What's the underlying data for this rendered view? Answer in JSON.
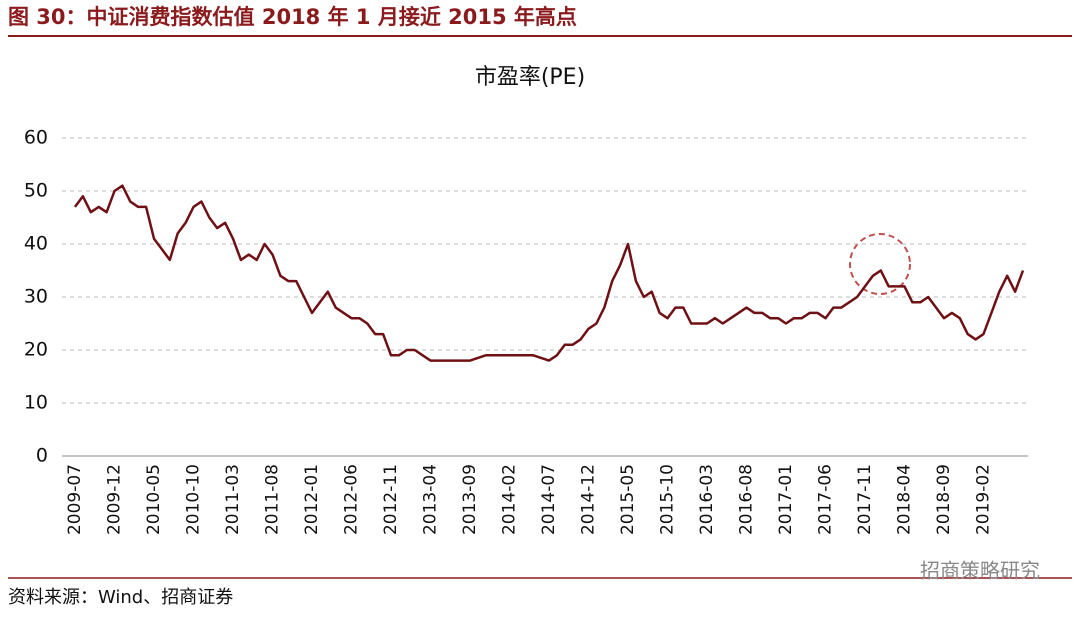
{
  "header": {
    "title": "图 30：中证消费指数估值 2018 年 1 月接近 2015 年高点"
  },
  "chart_data": {
    "type": "line",
    "title": "市盈率(PE)",
    "x": [
      "2009-07",
      "2009-08",
      "2009-09",
      "2009-10",
      "2009-11",
      "2009-12",
      "2010-01",
      "2010-02",
      "2010-03",
      "2010-04",
      "2010-05",
      "2010-06",
      "2010-07",
      "2010-08",
      "2010-09",
      "2010-10",
      "2010-11",
      "2010-12",
      "2011-01",
      "2011-02",
      "2011-03",
      "2011-04",
      "2011-05",
      "2011-06",
      "2011-07",
      "2011-08",
      "2011-09",
      "2011-10",
      "2011-11",
      "2011-12",
      "2012-01",
      "2012-02",
      "2012-03",
      "2012-04",
      "2012-05",
      "2012-06",
      "2012-07",
      "2012-08",
      "2012-09",
      "2012-10",
      "2012-11",
      "2012-12",
      "2013-01",
      "2013-02",
      "2013-03",
      "2013-04",
      "2013-05",
      "2013-06",
      "2013-07",
      "2013-08",
      "2013-09",
      "2013-10",
      "2013-11",
      "2013-12",
      "2014-01",
      "2014-02",
      "2014-03",
      "2014-04",
      "2014-05",
      "2014-06",
      "2014-07",
      "2014-08",
      "2014-09",
      "2014-10",
      "2014-11",
      "2014-12",
      "2015-01",
      "2015-02",
      "2015-03",
      "2015-04",
      "2015-05",
      "2015-06",
      "2015-07",
      "2015-08",
      "2015-09",
      "2015-10",
      "2015-11",
      "2015-12",
      "2016-01",
      "2016-02",
      "2016-03",
      "2016-04",
      "2016-05",
      "2016-06",
      "2016-07",
      "2016-08",
      "2016-09",
      "2016-10",
      "2016-11",
      "2016-12",
      "2017-01",
      "2017-02",
      "2017-03",
      "2017-04",
      "2017-05",
      "2017-06",
      "2017-07",
      "2017-08",
      "2017-09",
      "2017-10",
      "2017-11",
      "2017-12",
      "2018-01",
      "2018-02",
      "2018-03",
      "2018-04",
      "2018-05",
      "2018-06",
      "2018-07",
      "2018-08",
      "2018-09",
      "2018-10",
      "2018-11",
      "2018-12",
      "2019-01",
      "2019-02",
      "2019-03",
      "2019-04",
      "2019-05",
      "2019-06",
      "2019-07"
    ],
    "series": [
      {
        "name": "市盈率(PE)",
        "color": "#6e1014",
        "values": [
          47,
          49,
          46,
          47,
          46,
          50,
          51,
          48,
          47,
          47,
          41,
          39,
          37,
          42,
          44,
          47,
          48,
          45,
          43,
          44,
          41,
          37,
          38,
          37,
          40,
          38,
          34,
          33,
          33,
          30,
          27,
          29,
          31,
          28,
          27,
          26,
          26,
          25,
          23,
          23,
          19,
          19,
          20,
          20,
          19,
          18,
          18,
          18,
          18,
          18,
          18,
          18.5,
          19,
          19,
          19,
          19,
          19,
          19,
          19,
          18.5,
          18,
          19,
          21,
          21,
          22,
          24,
          25,
          28,
          33,
          36,
          40,
          33,
          30,
          31,
          27,
          26,
          28,
          28,
          25,
          25,
          25,
          26,
          25,
          26,
          27,
          28,
          27,
          27,
          26,
          26,
          25,
          26,
          26,
          27,
          27,
          26,
          28,
          28,
          29,
          30,
          32,
          34,
          35,
          32,
          32,
          32,
          29,
          29,
          30,
          28,
          26,
          27,
          26,
          23,
          22,
          23,
          27,
          31,
          34,
          31,
          35
        ]
      }
    ],
    "xticks": [
      "2009-07",
      "2009-12",
      "2010-05",
      "2010-10",
      "2011-03",
      "2011-08",
      "2012-01",
      "2012-06",
      "2012-11",
      "2013-04",
      "2013-09",
      "2014-02",
      "2014-07",
      "2014-12",
      "2015-05",
      "2015-10",
      "2016-03",
      "2016-08",
      "2017-01",
      "2017-06",
      "2017-11",
      "2018-04",
      "2018-09",
      "2019-02"
    ],
    "ylim": [
      0,
      60
    ],
    "yticks": [
      0,
      10,
      20,
      30,
      40,
      50,
      60
    ],
    "grid": true
  },
  "source": "资料来源：Wind、招商证券",
  "watermark": "招商策略研究"
}
